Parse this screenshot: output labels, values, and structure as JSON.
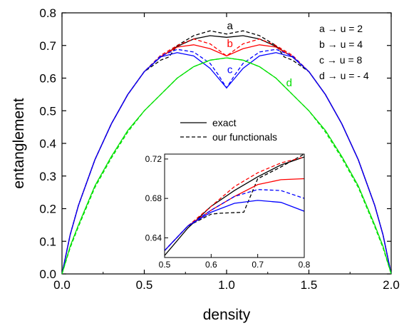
{
  "chart_data": {
    "type": "line",
    "xlabel": "density",
    "ylabel": "entanglement",
    "xlim": [
      0,
      2
    ],
    "ylim": [
      0,
      0.8
    ],
    "x_ticks": [
      "0.0",
      "0.5",
      "1.0",
      "1.5",
      "2.0"
    ],
    "y_ticks": [
      "0.0",
      "0.1",
      "0.2",
      "0.3",
      "0.4",
      "0.5",
      "0.6",
      "0.7",
      "0.8"
    ],
    "legend": {
      "placement": "center",
      "entries": [
        {
          "label": "exact",
          "style": "solid"
        },
        {
          "label": "our functionals",
          "style": "dashed"
        }
      ]
    },
    "annotations": {
      "key_lines": [
        "a → u = 2",
        "b → u = 4",
        "c → u = 8",
        "d → u = - 4"
      ],
      "curve_labels": [
        {
          "text": "a",
          "x": 1.02,
          "y": 0.75,
          "color": "#000000"
        },
        {
          "text": "b",
          "x": 1.02,
          "y": 0.695,
          "color": "#ff0000"
        },
        {
          "text": "c",
          "x": 1.02,
          "y": 0.615,
          "color": "#0000ff"
        },
        {
          "text": "d",
          "x": 1.38,
          "y": 0.575,
          "color": "#00dd00"
        }
      ]
    },
    "colors": {
      "a": "#000000",
      "b": "#ff0000",
      "c": "#0000ff",
      "d": "#00e000"
    },
    "series": [
      {
        "key": "a",
        "style": "solid",
        "x": [
          0,
          0.05,
          0.1,
          0.2,
          0.3,
          0.4,
          0.5,
          0.6,
          0.7,
          0.8,
          0.9,
          1.0,
          1.1,
          1.2,
          1.3,
          1.4,
          1.5,
          1.6,
          1.7,
          1.8,
          1.9,
          1.95,
          2.0
        ],
        "y": [
          0,
          0.12,
          0.21,
          0.35,
          0.46,
          0.55,
          0.62,
          0.665,
          0.697,
          0.72,
          0.73,
          0.725,
          0.73,
          0.72,
          0.697,
          0.665,
          0.62,
          0.55,
          0.46,
          0.35,
          0.21,
          0.12,
          0
        ]
      },
      {
        "key": "a",
        "style": "dashed",
        "x": [
          0,
          0.05,
          0.1,
          0.2,
          0.3,
          0.4,
          0.5,
          0.6,
          0.65,
          0.7,
          0.8,
          0.9,
          1.0,
          1.1,
          1.2,
          1.3,
          1.35,
          1.4,
          1.5,
          1.6,
          1.7,
          1.8,
          1.9,
          1.95,
          2.0
        ],
        "y": [
          0,
          0.12,
          0.21,
          0.35,
          0.46,
          0.55,
          0.62,
          0.655,
          0.665,
          0.7,
          0.73,
          0.745,
          0.735,
          0.745,
          0.73,
          0.7,
          0.665,
          0.655,
          0.62,
          0.55,
          0.46,
          0.35,
          0.21,
          0.12,
          0
        ]
      },
      {
        "key": "b",
        "style": "solid",
        "x": [
          0,
          0.05,
          0.1,
          0.2,
          0.3,
          0.4,
          0.5,
          0.6,
          0.7,
          0.8,
          0.9,
          1.0,
          1.1,
          1.2,
          1.3,
          1.4,
          1.5,
          1.6,
          1.7,
          1.8,
          1.9,
          1.95,
          2.0
        ],
        "y": [
          0,
          0.12,
          0.21,
          0.35,
          0.46,
          0.55,
          0.62,
          0.666,
          0.695,
          0.702,
          0.69,
          0.668,
          0.69,
          0.702,
          0.695,
          0.666,
          0.62,
          0.55,
          0.46,
          0.35,
          0.21,
          0.12,
          0
        ]
      },
      {
        "key": "b",
        "style": "dashed",
        "x": [
          0,
          0.05,
          0.1,
          0.2,
          0.3,
          0.4,
          0.5,
          0.6,
          0.7,
          0.8,
          0.9,
          1.0,
          1.1,
          1.2,
          1.3,
          1.4,
          1.5,
          1.6,
          1.7,
          1.8,
          1.9,
          1.95,
          2.0
        ],
        "y": [
          0,
          0.12,
          0.21,
          0.35,
          0.46,
          0.55,
          0.62,
          0.67,
          0.7,
          0.72,
          0.705,
          0.668,
          0.705,
          0.72,
          0.7,
          0.67,
          0.62,
          0.55,
          0.46,
          0.35,
          0.21,
          0.12,
          0
        ]
      },
      {
        "key": "c",
        "style": "solid",
        "x": [
          0,
          0.05,
          0.1,
          0.2,
          0.3,
          0.4,
          0.5,
          0.6,
          0.7,
          0.8,
          0.9,
          0.95,
          1.0,
          1.05,
          1.1,
          1.2,
          1.3,
          1.4,
          1.5,
          1.6,
          1.7,
          1.8,
          1.9,
          1.95,
          2.0
        ],
        "y": [
          0,
          0.12,
          0.21,
          0.35,
          0.46,
          0.55,
          0.62,
          0.665,
          0.678,
          0.668,
          0.63,
          0.6,
          0.57,
          0.6,
          0.63,
          0.668,
          0.678,
          0.665,
          0.62,
          0.55,
          0.46,
          0.35,
          0.21,
          0.12,
          0
        ]
      },
      {
        "key": "c",
        "style": "dashed",
        "x": [
          0,
          0.05,
          0.1,
          0.2,
          0.3,
          0.4,
          0.5,
          0.6,
          0.7,
          0.8,
          0.9,
          0.95,
          1.0,
          1.05,
          1.1,
          1.2,
          1.3,
          1.4,
          1.5,
          1.6,
          1.7,
          1.8,
          1.9,
          1.95,
          2.0
        ],
        "y": [
          0,
          0.12,
          0.21,
          0.35,
          0.46,
          0.55,
          0.62,
          0.668,
          0.688,
          0.68,
          0.645,
          0.61,
          0.57,
          0.61,
          0.645,
          0.68,
          0.688,
          0.668,
          0.62,
          0.55,
          0.46,
          0.35,
          0.21,
          0.12,
          0
        ]
      },
      {
        "key": "d",
        "style": "solid",
        "x": [
          0,
          0.05,
          0.1,
          0.2,
          0.3,
          0.4,
          0.5,
          0.6,
          0.7,
          0.8,
          0.9,
          1.0,
          1.1,
          1.2,
          1.3,
          1.4,
          1.5,
          1.6,
          1.7,
          1.8,
          1.9,
          1.95,
          2.0
        ],
        "y": [
          0,
          0.085,
          0.15,
          0.27,
          0.36,
          0.44,
          0.5,
          0.55,
          0.6,
          0.635,
          0.655,
          0.662,
          0.655,
          0.635,
          0.6,
          0.55,
          0.5,
          0.44,
          0.36,
          0.27,
          0.15,
          0.085,
          0
        ]
      },
      {
        "key": "d",
        "style": "dashed",
        "x": [
          0,
          0.05,
          0.1,
          0.2,
          0.3,
          0.4,
          0.5,
          0.6,
          0.7,
          0.8,
          0.9,
          1.0,
          1.1,
          1.2,
          1.3,
          1.4,
          1.5,
          1.6,
          1.7,
          1.8,
          1.9,
          1.95,
          2.0
        ],
        "y": [
          0,
          0.08,
          0.145,
          0.265,
          0.355,
          0.435,
          0.5,
          0.55,
          0.6,
          0.635,
          0.655,
          0.662,
          0.655,
          0.635,
          0.6,
          0.55,
          0.5,
          0.435,
          0.355,
          0.265,
          0.145,
          0.08,
          0
        ]
      }
    ],
    "inset": {
      "xlim": [
        0.5,
        0.8
      ],
      "ylim": [
        0.62,
        0.725
      ],
      "x_ticks": [
        "0.5",
        "0.6",
        "0.7",
        "0.8"
      ],
      "y_ticks": [
        "0.64",
        "0.68",
        "0.72"
      ],
      "series": [
        {
          "key": "a",
          "style": "solid",
          "x": [
            0.5,
            0.55,
            0.6,
            0.65,
            0.7,
            0.75,
            0.8
          ],
          "y": [
            0.622,
            0.65,
            0.672,
            0.688,
            0.702,
            0.714,
            0.722
          ]
        },
        {
          "key": "a",
          "style": "dashed",
          "x": [
            0.5,
            0.55,
            0.6,
            0.62,
            0.67,
            0.7,
            0.75,
            0.8
          ],
          "y": [
            0.627,
            0.652,
            0.664,
            0.665,
            0.666,
            0.7,
            0.712,
            0.725
          ]
        },
        {
          "key": "b",
          "style": "solid",
          "x": [
            0.5,
            0.55,
            0.6,
            0.65,
            0.7,
            0.75,
            0.8
          ],
          "y": [
            0.627,
            0.652,
            0.668,
            0.682,
            0.694,
            0.699,
            0.7
          ]
        },
        {
          "key": "b",
          "style": "dashed",
          "x": [
            0.5,
            0.55,
            0.6,
            0.65,
            0.7,
            0.75,
            0.8
          ],
          "y": [
            0.627,
            0.652,
            0.672,
            0.692,
            0.706,
            0.716,
            0.722
          ]
        },
        {
          "key": "c",
          "style": "solid",
          "x": [
            0.5,
            0.55,
            0.6,
            0.65,
            0.7,
            0.75,
            0.8
          ],
          "y": [
            0.627,
            0.652,
            0.666,
            0.675,
            0.678,
            0.676,
            0.667
          ]
        },
        {
          "key": "c",
          "style": "dashed",
          "x": [
            0.5,
            0.55,
            0.6,
            0.65,
            0.7,
            0.75,
            0.8
          ],
          "y": [
            0.627,
            0.652,
            0.668,
            0.682,
            0.689,
            0.688,
            0.68
          ]
        }
      ]
    }
  }
}
